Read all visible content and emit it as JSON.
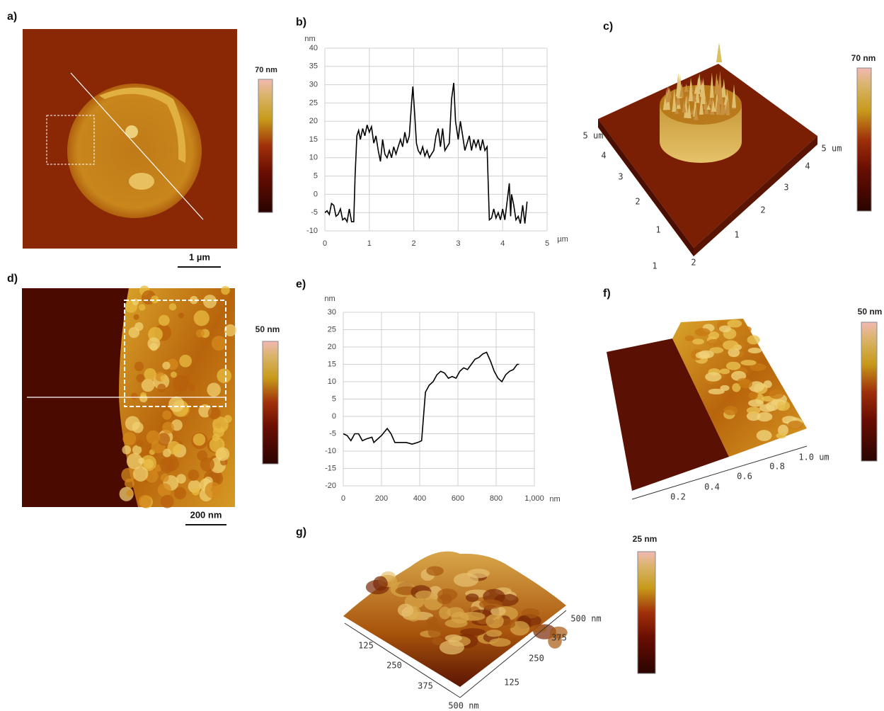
{
  "panel_labels": [
    "a)",
    "b)",
    "c)",
    "d)",
    "e)",
    "f)",
    "g)"
  ],
  "colorbars": [
    "70 nm",
    "70 nm",
    "50 nm",
    "50 nm",
    "25 nm"
  ],
  "scale_bars": [
    "1 µm",
    "200 nm"
  ],
  "axes_3d": {
    "c": {
      "left": [
        "5 um",
        "4",
        "3",
        "2",
        "1"
      ],
      "right": [
        "5 um",
        "4",
        "3",
        "2",
        "1"
      ],
      "bottom": [
        "1",
        "2"
      ]
    },
    "f": [
      "0.2",
      "0.4",
      "0.6",
      "0.8",
      "1.0 um"
    ],
    "g": {
      "left": [
        "125",
        "250",
        "375",
        "500 nm"
      ],
      "right": [
        "500 nm",
        "375",
        "250",
        "125"
      ]
    }
  },
  "chart_data": [
    {
      "type": "line",
      "color": "#000000",
      "grid": true,
      "xlabel": "µm",
      "ylabel": "nm",
      "xlim": [
        0,
        5
      ],
      "ylim": [
        -10,
        40
      ],
      "xticks": [
        0,
        1,
        2,
        3,
        4,
        5
      ],
      "yticks": [
        -10,
        -5,
        0,
        5,
        10,
        15,
        20,
        25,
        30,
        35,
        40
      ],
      "x": [
        0,
        0.05,
        0.1,
        0.15,
        0.2,
        0.25,
        0.3,
        0.35,
        0.4,
        0.45,
        0.5,
        0.55,
        0.6,
        0.65,
        0.68,
        0.72,
        0.76,
        0.8,
        0.85,
        0.9,
        0.95,
        1.0,
        1.05,
        1.1,
        1.15,
        1.2,
        1.25,
        1.3,
        1.35,
        1.4,
        1.45,
        1.5,
        1.55,
        1.6,
        1.65,
        1.7,
        1.75,
        1.8,
        1.85,
        1.9,
        1.95,
        1.98,
        2.02,
        2.06,
        2.1,
        2.15,
        2.2,
        2.25,
        2.3,
        2.35,
        2.4,
        2.45,
        2.5,
        2.55,
        2.6,
        2.65,
        2.7,
        2.75,
        2.8,
        2.85,
        2.9,
        2.94,
        3.0,
        3.05,
        3.1,
        3.15,
        3.2,
        3.25,
        3.3,
        3.35,
        3.4,
        3.45,
        3.5,
        3.55,
        3.6,
        3.65,
        3.7,
        3.75,
        3.8,
        3.85,
        3.9,
        3.95,
        4.0,
        4.05,
        4.1,
        4.15,
        4.18,
        4.2,
        4.25,
        4.3,
        4.35,
        4.4,
        4.45,
        4.5,
        4.55
      ],
      "values": [
        -5,
        -4.5,
        -5.5,
        -2.5,
        -3,
        -6,
        -5.5,
        -4,
        -7,
        -6.5,
        -7.5,
        -4,
        -7.5,
        -7.5,
        5,
        16,
        17.5,
        15,
        18,
        16,
        19,
        17,
        18.5,
        14,
        16,
        12,
        9,
        15,
        11,
        10,
        12,
        10,
        13,
        11,
        13,
        15,
        13,
        17,
        14,
        16,
        25,
        29.5,
        22,
        14,
        12,
        11,
        13,
        10.5,
        12,
        10,
        11,
        12,
        16,
        18,
        13,
        18,
        12,
        13,
        14,
        26,
        30.5,
        20,
        15,
        20,
        16,
        12,
        14,
        16,
        12,
        15,
        13,
        15,
        12,
        15,
        12,
        13,
        -7,
        -6.5,
        -4,
        -6.5,
        -5,
        -7,
        -4,
        -7,
        -2,
        3,
        -6,
        0,
        -3,
        -7,
        -6,
        -8,
        -3,
        -8,
        -2
      ]
    },
    {
      "type": "line",
      "color": "#000000",
      "grid": true,
      "xlabel": "nm",
      "ylabel": "nm",
      "xlim": [
        0,
        1000
      ],
      "ylim": [
        -20,
        30
      ],
      "xticks": [
        0,
        200,
        400,
        600,
        800,
        {
          "value": 1000,
          "label": "1,000"
        }
      ],
      "yticks": [
        -20,
        -15,
        -10,
        -5,
        0,
        5,
        10,
        15,
        20,
        25,
        30
      ],
      "x": [
        0,
        20,
        40,
        60,
        80,
        100,
        120,
        150,
        160,
        200,
        230,
        250,
        270,
        300,
        330,
        360,
        390,
        410,
        420,
        430,
        450,
        470,
        490,
        510,
        530,
        550,
        570,
        590,
        610,
        630,
        650,
        670,
        690,
        710,
        730,
        750,
        770,
        790,
        810,
        830,
        850,
        870,
        890,
        910,
        920
      ],
      "values": [
        -5,
        -5.5,
        -7,
        -5,
        -5,
        -7,
        -6.5,
        -6,
        -7.5,
        -5.5,
        -3.5,
        -5,
        -7.5,
        -7.5,
        -7.5,
        -8,
        -7.5,
        -7,
        0,
        7,
        9,
        10,
        12,
        13,
        12.5,
        11,
        11.5,
        11,
        13,
        14,
        13.5,
        15,
        16.5,
        17,
        18,
        18.5,
        16,
        13,
        11,
        10,
        12,
        13,
        13.5,
        15,
        15
      ]
    }
  ]
}
